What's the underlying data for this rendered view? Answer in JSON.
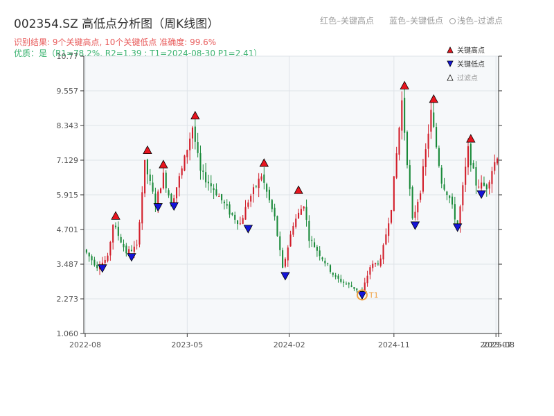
{
  "title": "002354.SZ 高低点分析图（周K线图）",
  "subtitle": "识别结果: 9个关键高点, 10个关键低点   准确度: 99.6%",
  "subtitle2": "优质：是（R1=78.2%, R2=1.39 ; T1=2024-08-30 P1=2.41）",
  "top_legend": {
    "red": "红色–关键高点",
    "blue": "蓝色–关键低点",
    "light": "浅色–过滤点"
  },
  "colors": {
    "up": "#d21e2a",
    "down": "#1a8a3a",
    "high_marker": "#e8141e",
    "low_marker": "#1414d8",
    "grid": "#dfe3e8",
    "plot_bg": "#f6f8fa",
    "ring": "#f0a040"
  },
  "chart_data": {
    "type": "candlestick",
    "y_ticks": [
      "1.060",
      "2.273",
      "3.487",
      "4.701",
      "5.915",
      "7.129",
      "8.343",
      "9.557",
      "10.77"
    ],
    "ylim": [
      1.06,
      10.77
    ],
    "x_ticks": [
      {
        "label": "2022-08",
        "t": 0
      },
      {
        "label": "2023-05",
        "t": 38.5
      },
      {
        "label": "2024-02",
        "t": 77
      },
      {
        "label": "2024-11",
        "t": 116.5
      },
      {
        "label": "2025-07",
        "t": 155
      },
      {
        "label": "2025-08",
        "t": 156
      }
    ],
    "bar_count": 156,
    "series_path": [
      [
        0,
        4.0
      ],
      [
        5,
        3.4
      ],
      [
        9,
        3.7
      ],
      [
        11,
        4.9
      ],
      [
        16,
        3.9
      ],
      [
        20,
        4.1
      ],
      [
        23,
        7.0
      ],
      [
        27,
        5.6
      ],
      [
        30,
        6.6
      ],
      [
        33,
        5.6
      ],
      [
        37,
        6.8
      ],
      [
        41,
        8.3
      ],
      [
        44,
        6.7
      ],
      [
        50,
        6.0
      ],
      [
        55,
        5.3
      ],
      [
        59,
        4.9
      ],
      [
        62,
        5.7
      ],
      [
        67,
        6.6
      ],
      [
        72,
        5.1
      ],
      [
        75,
        3.3
      ],
      [
        79,
        4.9
      ],
      [
        83,
        5.6
      ],
      [
        85,
        4.4
      ],
      [
        90,
        3.7
      ],
      [
        95,
        3.0
      ],
      [
        100,
        2.75
      ],
      [
        105,
        2.5
      ],
      [
        108,
        3.4
      ],
      [
        112,
        3.6
      ],
      [
        116,
        5.5
      ],
      [
        120,
        9.2
      ],
      [
        124,
        5.0
      ],
      [
        127,
        6.1
      ],
      [
        131,
        8.8
      ],
      [
        135,
        6.4
      ],
      [
        138,
        5.8
      ],
      [
        141,
        4.8
      ],
      [
        145,
        7.5
      ],
      [
        148,
        6.3
      ],
      [
        152,
        6.2
      ],
      [
        154,
        6.8
      ],
      [
        156,
        7.3
      ]
    ],
    "key_highs": [
      {
        "t": 11,
        "price": 4.96
      },
      {
        "t": 23,
        "price": 7.26
      },
      {
        "t": 29,
        "price": 6.76
      },
      {
        "t": 41,
        "price": 8.47
      },
      {
        "t": 67,
        "price": 6.81
      },
      {
        "t": 80,
        "price": 5.86
      },
      {
        "t": 120,
        "price": 9.52
      },
      {
        "t": 131,
        "price": 9.05
      },
      {
        "t": 145,
        "price": 7.66
      }
    ],
    "key_lows": [
      {
        "t": 6,
        "price": 3.3
      },
      {
        "t": 17,
        "price": 3.69
      },
      {
        "t": 27,
        "price": 5.44
      },
      {
        "t": 33,
        "price": 5.47
      },
      {
        "t": 61,
        "price": 4.68
      },
      {
        "t": 75,
        "price": 3.03
      },
      {
        "t": 104,
        "price": 2.36
      },
      {
        "t": 124,
        "price": 4.8
      },
      {
        "t": 140,
        "price": 4.73
      },
      {
        "t": 149,
        "price": 5.89
      }
    ],
    "filtered_points": [
      {
        "t": 104,
        "price": 2.41,
        "label": "T1"
      }
    ],
    "legend": [
      {
        "symbol": "high",
        "label": "关键高点"
      },
      {
        "symbol": "low",
        "label": "关键低点"
      },
      {
        "symbol": "filtered",
        "label": "过滤点"
      }
    ],
    "grid": true
  }
}
